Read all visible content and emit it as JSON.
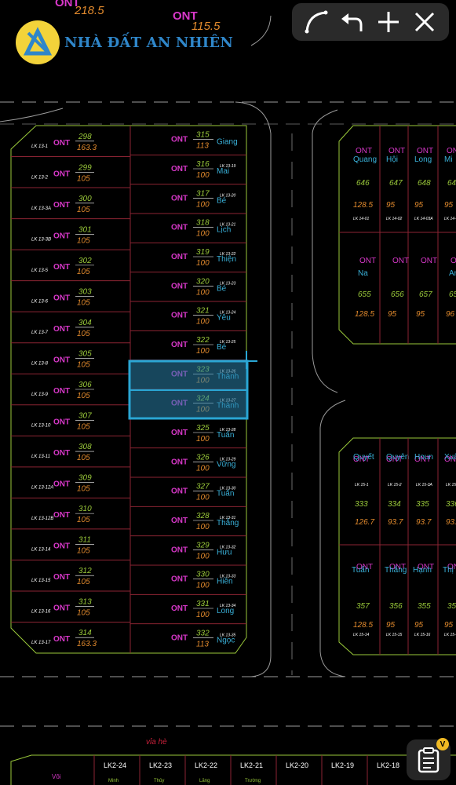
{
  "brand": {
    "name": "NHÀ ĐẤT AN NHIÊN"
  },
  "toolbar": {
    "items": [
      "arc-tool",
      "undo",
      "add",
      "close"
    ]
  },
  "colors": {
    "magenta": "#d838c9",
    "green": "#9ac93a",
    "cyan": "#39b0d8",
    "orange": "#e28a2d",
    "red": "#c8203a",
    "lot_border": "#8b2433",
    "road": "#9b9b9b",
    "selection": "#2aa6d4"
  },
  "top_partial": [
    {
      "code": "ONT",
      "area": "218.5"
    },
    {
      "code": "ONT",
      "area": "115.5"
    }
  ],
  "left_block": [
    {
      "lot": "298",
      "area": "163.3",
      "code": "ONT",
      "tag": "LK 13-1"
    },
    {
      "lot": "299",
      "area": "105",
      "code": "ONT",
      "tag": "LK 13-2"
    },
    {
      "lot": "300",
      "area": "105",
      "code": "ONT",
      "tag": "LK 13-3A"
    },
    {
      "lot": "301",
      "area": "105",
      "code": "ONT",
      "tag": "LK 13-3B"
    },
    {
      "lot": "302",
      "area": "105",
      "code": "ONT",
      "tag": "LK 13-5"
    },
    {
      "lot": "303",
      "area": "105",
      "code": "ONT",
      "tag": "LK 13-6"
    },
    {
      "lot": "304",
      "area": "105",
      "code": "ONT",
      "tag": "LK 13-7"
    },
    {
      "lot": "305",
      "area": "105",
      "code": "ONT",
      "tag": "LK 13-8"
    },
    {
      "lot": "306",
      "area": "105",
      "code": "ONT",
      "tag": "LK 13-9"
    },
    {
      "lot": "307",
      "area": "105",
      "code": "ONT",
      "tag": "LK 13-10"
    },
    {
      "lot": "308",
      "area": "105",
      "code": "ONT",
      "tag": "LK 13-11"
    },
    {
      "lot": "309",
      "area": "105",
      "code": "ONT",
      "tag": "LK 13-12A"
    },
    {
      "lot": "310",
      "area": "105",
      "code": "ONT",
      "tag": "LK 13-12B"
    },
    {
      "lot": "311",
      "area": "105",
      "code": "ONT",
      "tag": "LK 13-14"
    },
    {
      "lot": "312",
      "area": "105",
      "code": "ONT",
      "tag": "LK 13-15"
    },
    {
      "lot": "313",
      "area": "105",
      "code": "ONT",
      "tag": "LK 13-16"
    },
    {
      "lot": "314",
      "area": "163.3",
      "code": "ONT",
      "tag": "LK 13-17"
    }
  ],
  "right_column": [
    {
      "lot": "315",
      "area": "113",
      "code": "ONT",
      "owner": "Giang",
      "tag": ""
    },
    {
      "lot": "316",
      "area": "100",
      "code": "ONT",
      "owner": "Mai",
      "tag": "LK 13-19"
    },
    {
      "lot": "317",
      "area": "100",
      "code": "ONT",
      "owner": "Bé",
      "tag": "LK 13-20"
    },
    {
      "lot": "318",
      "area": "100",
      "code": "ONT",
      "owner": "Lịch",
      "tag": "LK 13-21"
    },
    {
      "lot": "319",
      "area": "100",
      "code": "ONT",
      "owner": "Thiện",
      "tag": "LK 13-22"
    },
    {
      "lot": "320",
      "area": "100",
      "code": "ONT",
      "owner": "Bé",
      "tag": "LK 13-23"
    },
    {
      "lot": "321",
      "area": "100",
      "code": "ONT",
      "owner": "Yêu",
      "tag": "LK 13-24"
    },
    {
      "lot": "322",
      "area": "100",
      "code": "ONT",
      "owner": "Bé",
      "tag": "LK 13-25"
    },
    {
      "lot": "323",
      "area": "100",
      "code": "ONT",
      "owner": "Thành",
      "tag": "LK 13-26"
    },
    {
      "lot": "324",
      "area": "100",
      "code": "ONT",
      "owner": "Thành",
      "tag": "LK 13-27"
    },
    {
      "lot": "325",
      "area": "100",
      "code": "ONT",
      "owner": "Tuấn",
      "tag": "LK 13-28"
    },
    {
      "lot": "326",
      "area": "100",
      "code": "ONT",
      "owner": "Vững",
      "tag": "LK 13-29"
    },
    {
      "lot": "327",
      "area": "100",
      "code": "ONT",
      "owner": "Tuấn",
      "tag": "LK 13-30"
    },
    {
      "lot": "328",
      "area": "100",
      "code": "ONT",
      "owner": "Thắng",
      "tag": "LK 13-31"
    },
    {
      "lot": "329",
      "area": "100",
      "code": "ONT",
      "owner": "Hưu",
      "tag": "LK 13-32"
    },
    {
      "lot": "330",
      "area": "100",
      "code": "ONT",
      "owner": "Hiền",
      "tag": "LK 13-33"
    },
    {
      "lot": "331",
      "area": "100",
      "code": "ONT",
      "owner": "Long",
      "tag": "LK 13-34"
    },
    {
      "lot": "332",
      "area": "113",
      "code": "ONT",
      "owner": "Ngọc",
      "tag": "LK 13-35"
    }
  ],
  "block14_top": [
    {
      "owner": "Quang",
      "lot": "646",
      "area": "128.5",
      "tag": "LK 14-01"
    },
    {
      "owner": "Hội",
      "lot": "647",
      "area": "95",
      "tag": "LK 14-02"
    },
    {
      "owner": "Long",
      "lot": "648",
      "area": "95",
      "tag": "LK 14-03A"
    },
    {
      "owner": "Mi",
      "lot": "64",
      "area": "95",
      "tag": "LK 14-"
    }
  ],
  "block14_bottom": [
    {
      "owner": "Na",
      "lot": "655",
      "area": "128.5"
    },
    {
      "owner": "",
      "lot": "656",
      "area": "95"
    },
    {
      "owner": "",
      "lot": "657",
      "area": "95"
    },
    {
      "owner": "An",
      "lot": "65",
      "area": "96"
    }
  ],
  "block15_top": [
    {
      "owner": "Quyết",
      "lot": "333",
      "area": "126.7",
      "tag": "LK 15-1"
    },
    {
      "owner": "Quyên",
      "lot": "334",
      "area": "93.7",
      "tag": "LK 15-2"
    },
    {
      "owner": "Houn",
      "lot": "335",
      "area": "93.7",
      "tag": "LK 15-3A"
    },
    {
      "owner": "Xuân",
      "lot": "336",
      "area": "93.",
      "tag": "LK 15-"
    }
  ],
  "block15_bottom": [
    {
      "owner": "Tuấn",
      "lot": "357",
      "area": "128.5",
      "tag": "LK 15-14"
    },
    {
      "owner": "Thắng",
      "lot": "356",
      "area": "95",
      "tag": "LK 15-15"
    },
    {
      "owner": "Hạnh",
      "lot": "355",
      "area": "95",
      "tag": "LK 15-16"
    },
    {
      "owner": "Thị",
      "lot": "35",
      "area": "95",
      "tag": "LK 15-"
    }
  ],
  "bottom_label": "vỉa hè",
  "bottom_row": [
    {
      "tag": "LK2-24",
      "owner": "Minh"
    },
    {
      "tag": "LK2-23",
      "owner": "Thủy"
    },
    {
      "tag": "LK2-22",
      "owner": "Lăng"
    },
    {
      "tag": "LK2-21",
      "owner": "Trường"
    },
    {
      "tag": "LK2-20",
      "owner": ""
    },
    {
      "tag": "LK2-19",
      "owner": ""
    },
    {
      "tag": "LK2-18",
      "owner": ""
    }
  ],
  "bottom_left_label": "Vôi"
}
